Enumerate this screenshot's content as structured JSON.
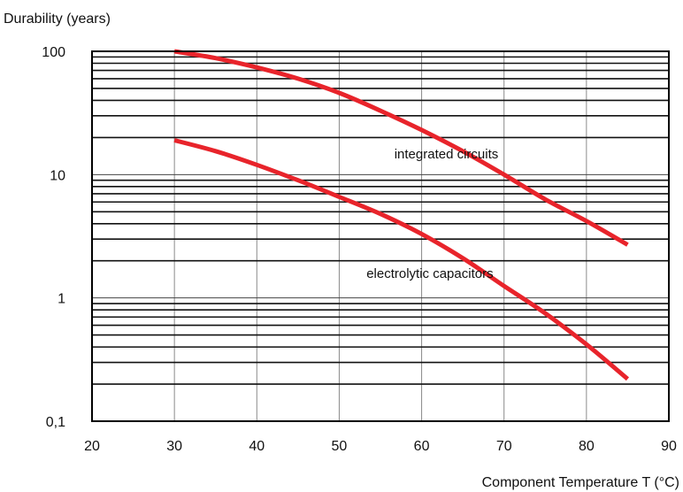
{
  "chart_data": {
    "type": "line",
    "title": "",
    "xlabel": "Component Temperature T (°C)",
    "ylabel": "Durability (years)",
    "xlim": [
      20,
      90
    ],
    "ylim": [
      0.1,
      100
    ],
    "yscale": "log",
    "x_ticks": [
      20,
      30,
      40,
      50,
      60,
      70,
      80,
      90
    ],
    "x_tick_labels": [
      "20",
      "30",
      "40",
      "50",
      "60",
      "70",
      "80",
      "90"
    ],
    "y_ticks": [
      0.1,
      1,
      10,
      100
    ],
    "y_tick_labels": [
      "0,1",
      "1",
      "10",
      "100"
    ],
    "grid": true,
    "line_color": "#e8242b",
    "series": [
      {
        "x": [
          30,
          35,
          40,
          45,
          50,
          55,
          60,
          65,
          70,
          75,
          80,
          85
        ],
        "y": [
          100,
          88,
          74,
          60,
          46,
          33,
          23,
          15.5,
          10,
          6.3,
          4.2,
          2.7
        ]
      },
      {
        "x": [
          30,
          35,
          40,
          45,
          50,
          55,
          60,
          65,
          70,
          75,
          80,
          85
        ],
        "y": [
          19,
          15.5,
          12,
          9,
          6.6,
          4.8,
          3.3,
          2.1,
          1.25,
          0.75,
          0.42,
          0.22
        ]
      }
    ],
    "annotations": [
      {
        "text": "integrated circuits",
        "x": 63,
        "y": 13.5
      },
      {
        "text": "electrolytic capacitors",
        "x": 61,
        "y": 1.45
      }
    ]
  }
}
